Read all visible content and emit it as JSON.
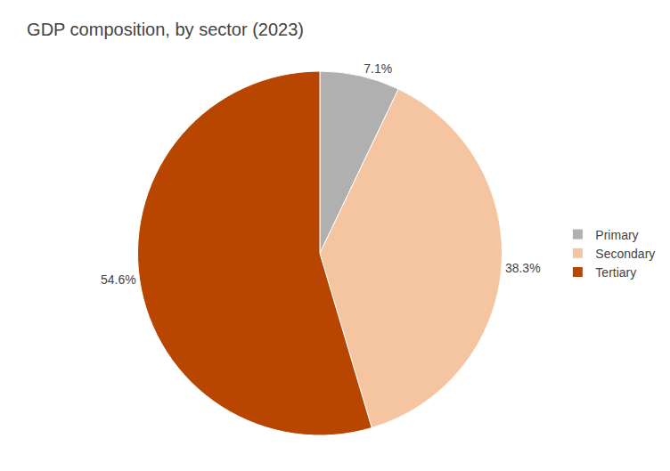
{
  "chart_data": {
    "type": "pie",
    "title": "GDP composition, by sector (2023)",
    "categories": [
      "Primary",
      "Secondary",
      "Tertiary"
    ],
    "values": [
      7.1,
      38.3,
      54.6
    ],
    "value_labels": [
      "7.1%",
      "38.3%",
      "54.6%"
    ],
    "colors": [
      "#b0b0b0",
      "#f5c4a0",
      "#b84500"
    ],
    "data_labels": true,
    "legend": "right"
  }
}
